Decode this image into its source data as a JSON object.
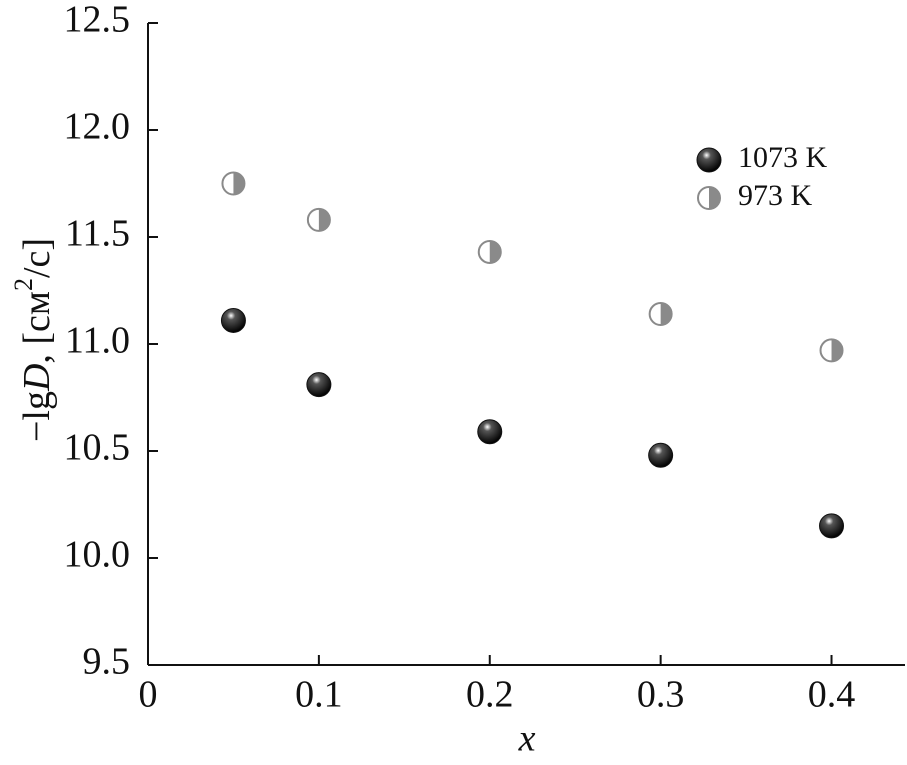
{
  "chart_data": {
    "type": "scatter",
    "xlabel": "x",
    "ylabel": [
      "−lg",
      "D",
      ", [см",
      "2",
      "/с]"
    ],
    "x": [
      0.05,
      0.1,
      0.2,
      0.3,
      0.4
    ],
    "series": [
      {
        "name": "1073 K",
        "color": "#111111",
        "marker": "filled",
        "values": [
          11.11,
          10.81,
          10.59,
          10.48,
          10.15
        ]
      },
      {
        "name": "973 K",
        "color": "#8a8a8a",
        "marker": "half",
        "values": [
          11.75,
          11.58,
          11.43,
          11.14,
          10.97
        ]
      }
    ],
    "xlim": [
      0,
      0.443
    ],
    "xticks": [
      0,
      0.1,
      0.2,
      0.3,
      0.4
    ],
    "ylim": [
      9.5,
      12.5
    ],
    "yticks": [
      9.5,
      {
        "value": 10,
        "label": "10.0"
      },
      10.5,
      {
        "value": 11,
        "label": "11.0"
      },
      11.5,
      {
        "value": 12,
        "label": "12.0"
      },
      12.5
    ],
    "legend": "upper-right"
  }
}
